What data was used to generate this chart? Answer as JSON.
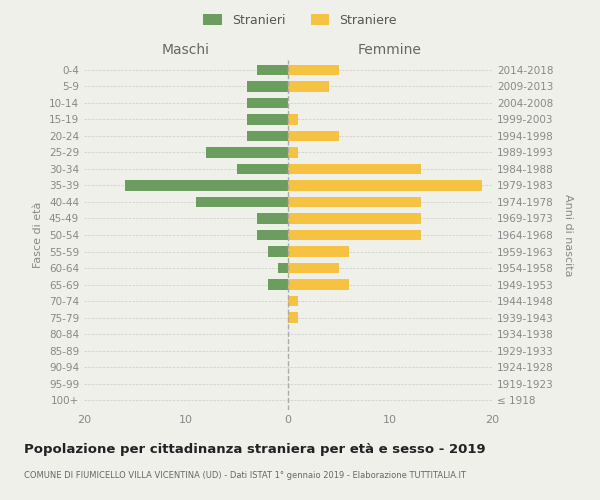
{
  "age_groups": [
    "100+",
    "95-99",
    "90-94",
    "85-89",
    "80-84",
    "75-79",
    "70-74",
    "65-69",
    "60-64",
    "55-59",
    "50-54",
    "45-49",
    "40-44",
    "35-39",
    "30-34",
    "25-29",
    "20-24",
    "15-19",
    "10-14",
    "5-9",
    "0-4"
  ],
  "birth_years": [
    "≤ 1918",
    "1919-1923",
    "1924-1928",
    "1929-1933",
    "1934-1938",
    "1939-1943",
    "1944-1948",
    "1949-1953",
    "1954-1958",
    "1959-1963",
    "1964-1968",
    "1969-1973",
    "1974-1978",
    "1979-1983",
    "1984-1988",
    "1989-1993",
    "1994-1998",
    "1999-2003",
    "2004-2008",
    "2009-2013",
    "2014-2018"
  ],
  "males": [
    0,
    0,
    0,
    0,
    0,
    0,
    0,
    2,
    1,
    2,
    3,
    3,
    9,
    16,
    5,
    8,
    4,
    4,
    4,
    4,
    3
  ],
  "females": [
    0,
    0,
    0,
    0,
    0,
    1,
    1,
    6,
    5,
    6,
    13,
    13,
    13,
    19,
    13,
    1,
    5,
    1,
    0,
    4,
    5
  ],
  "male_color": "#6b9e5e",
  "female_color": "#f5c242",
  "background_color": "#f0f0eb",
  "title": "Popolazione per cittadinanza straniera per età e sesso - 2019",
  "subtitle": "COMUNE DI FIUMICELLO VILLA VICENTINA (UD) - Dati ISTAT 1° gennaio 2019 - Elaborazione TUTTITALIA.IT",
  "header_left": "Maschi",
  "header_right": "Femmine",
  "ylabel_left": "Fasce di età",
  "ylabel_right": "Anni di nascita",
  "legend_male": "Stranieri",
  "legend_female": "Straniere",
  "xlim": 20
}
